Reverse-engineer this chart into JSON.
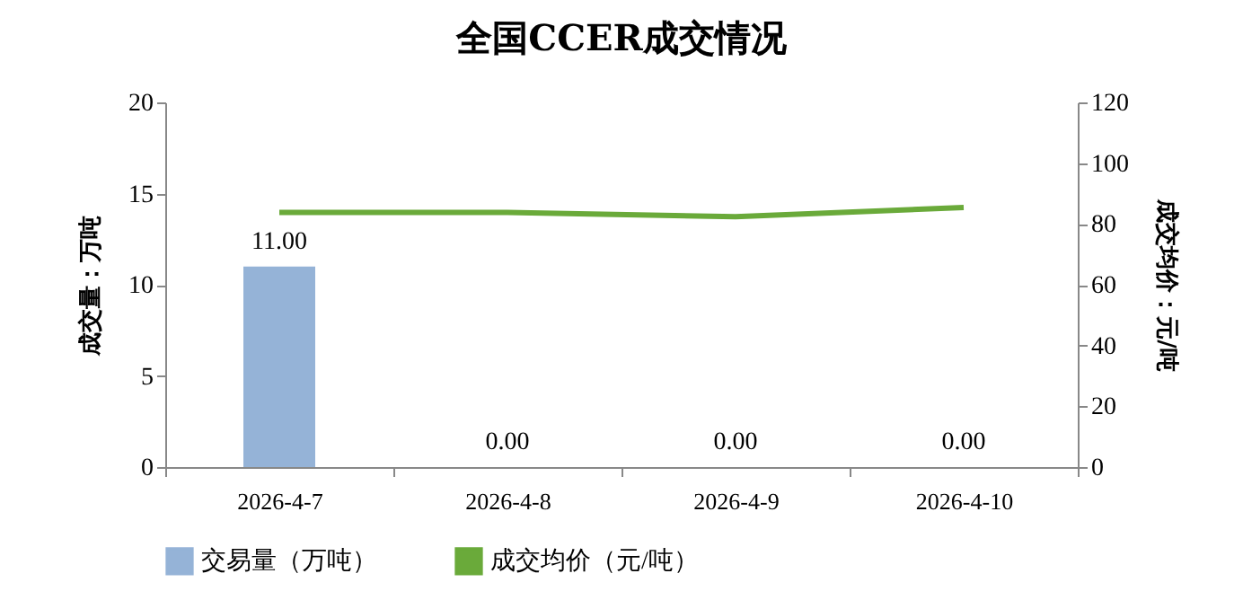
{
  "chart_data": {
    "type": "bar",
    "title": "全国CCER成交情况",
    "ylabel": "成交量：万吨",
    "y2label": "成交均价：元/吨",
    "categories": [
      "2026-4-7",
      "2026-4-8",
      "2026-4-9",
      "2026-4-10"
    ],
    "series": [
      {
        "name": "交易量（万吨）",
        "color": "#95b3d7",
        "values": [
          11,
          0,
          0,
          0
        ],
        "value_labels": [
          "11.00",
          "0.00",
          "0.00",
          "0.00"
        ]
      },
      {
        "name": "成交均价（元/吨）",
        "type": "line",
        "axis": "y2",
        "color": "#6aaa3a",
        "values": [
          83.8,
          83.8,
          82.4,
          85.4
        ]
      }
    ],
    "ylim": [
      0,
      20
    ],
    "yticks": [
      0,
      5,
      10,
      15,
      20
    ],
    "y2lim": [
      0,
      120
    ],
    "y2ticks": [
      0,
      20,
      40,
      60,
      80,
      100,
      120
    ],
    "grid": false,
    "legend": "bottom"
  }
}
